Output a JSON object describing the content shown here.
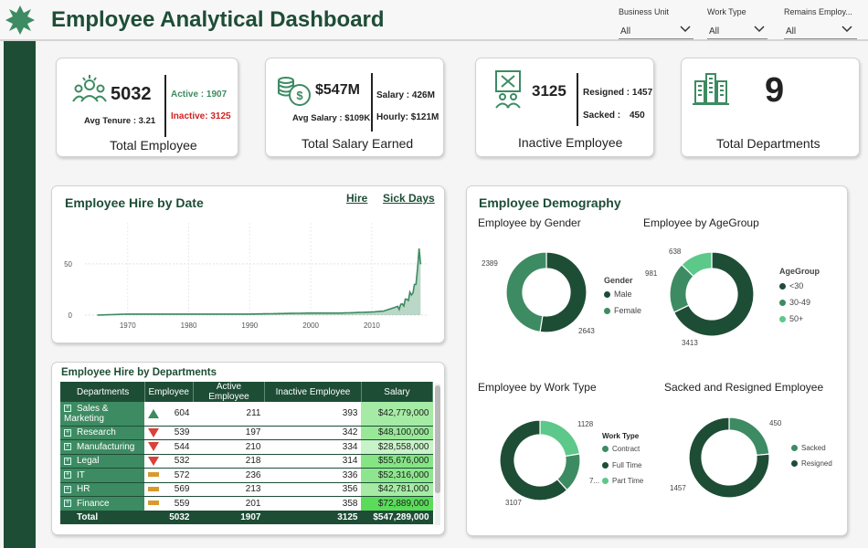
{
  "header": {
    "title": "Employee Analytical Dashboard",
    "slicers": [
      {
        "label": "Business Unit",
        "value": "All"
      },
      {
        "label": "Work Type",
        "value": "All"
      },
      {
        "label": "Remains Employ...",
        "value": "All"
      }
    ]
  },
  "kpis": {
    "total_employee": {
      "value": "5032",
      "active": "Active : 1907",
      "inactive": "Inactive: 3125",
      "tenure": "Avg Tenure : 3.21",
      "title": "Total Employee"
    },
    "salary": {
      "value": "$547M",
      "avg": "Avg Salary : $109K",
      "salary": "Salary : 426M",
      "hourly": "Hourly: $121M",
      "title": "Total Salary Earned"
    },
    "inactive": {
      "value": "3125",
      "resigned": "Resigned : 1457",
      "sacked_label": "Sacked :",
      "sacked_value": "450",
      "title": "Inactive Employee"
    },
    "departments": {
      "value": "9",
      "title": "Total Departments"
    }
  },
  "hire_chart": {
    "title": "Employee Hire by Date",
    "tabs": [
      "Hire",
      "Sick Days"
    ],
    "y_ticks": [
      "50",
      "0"
    ],
    "x_ticks": [
      "1970",
      "1980",
      "1990",
      "2000",
      "2010"
    ]
  },
  "dept_table": {
    "title": "Employee Hire by Departments",
    "columns": [
      "Departments",
      "Employee",
      "Active Employee",
      "Inactive Employee",
      "Salary"
    ],
    "rows": [
      {
        "name": "Sales & Marketing",
        "trend": "up",
        "employee": "604",
        "active": "211",
        "inactive": "393",
        "salary": "$42,779,000"
      },
      {
        "name": "Research",
        "trend": "down",
        "employee": "539",
        "active": "197",
        "inactive": "342",
        "salary": "$48,100,000"
      },
      {
        "name": "Manufacturing",
        "trend": "down",
        "employee": "544",
        "active": "210",
        "inactive": "334",
        "salary": "$28,558,000"
      },
      {
        "name": "Legal",
        "trend": "down",
        "employee": "532",
        "active": "218",
        "inactive": "314",
        "salary": "$55,676,000"
      },
      {
        "name": "IT",
        "trend": "flat",
        "employee": "572",
        "active": "236",
        "inactive": "336",
        "salary": "$52,316,000"
      },
      {
        "name": "HR",
        "trend": "flat",
        "employee": "569",
        "active": "213",
        "inactive": "356",
        "salary": "$42,781,000"
      },
      {
        "name": "Finance",
        "trend": "flat",
        "employee": "559",
        "active": "201",
        "inactive": "358",
        "salary": "$72,889,000"
      }
    ],
    "total": {
      "name": "Total",
      "employee": "5032",
      "active": "1907",
      "inactive": "3125",
      "salary": "$547,289,000"
    }
  },
  "demography": {
    "title": "Employee Demography",
    "gender": {
      "title": "Employee by Gender",
      "legend_title": "Gender",
      "labels": [
        "2389",
        "2643"
      ],
      "legend": [
        "Male",
        "Female"
      ]
    },
    "age": {
      "title": "Employee by AgeGroup",
      "legend_title": "AgeGroup",
      "labels": [
        "638",
        "981",
        "3413"
      ],
      "legend": [
        "<30",
        "30-49",
        "50+"
      ]
    },
    "worktype": {
      "title": "Employee by Work Type",
      "legend_title": "Work Type",
      "labels": [
        "1128",
        "7...",
        "3107"
      ],
      "legend": [
        "Contract",
        "Full Time",
        "Part Time"
      ]
    },
    "sacked": {
      "title": "Sacked and Resigned Employee",
      "labels": [
        "450",
        "1457"
      ],
      "legend": [
        "Sacked",
        "Resigned"
      ]
    }
  },
  "colors": {
    "dark": "#1e4d36",
    "mid": "#3d8b62",
    "light": "#5cc88a",
    "pale": "#b6ecb6"
  },
  "chart_data": [
    {
      "type": "pie",
      "title": "Employee by Gender",
      "labels": [
        "Male",
        "Female"
      ],
      "values": [
        2643,
        2389
      ]
    },
    {
      "type": "pie",
      "title": "Employee by AgeGroup",
      "labels": [
        "<30",
        "30-49",
        "50+"
      ],
      "values": [
        3413,
        981,
        638
      ]
    },
    {
      "type": "pie",
      "title": "Employee by Work Type",
      "labels": [
        "Contract",
        "Full Time",
        "Part Time"
      ],
      "values": [
        1128,
        3107,
        797
      ]
    },
    {
      "type": "pie",
      "title": "Sacked and Resigned Employee",
      "labels": [
        "Sacked",
        "Resigned"
      ],
      "values": [
        450,
        1457
      ]
    },
    {
      "type": "line",
      "title": "Employee Hire by Date",
      "x": [
        1965,
        1970,
        1980,
        1990,
        2000,
        2005,
        2010,
        2012,
        2013,
        2014,
        2015,
        2016,
        2017,
        2018
      ],
      "y": [
        0,
        1,
        1,
        1,
        2,
        2,
        3,
        4,
        6,
        8,
        12,
        20,
        30,
        78
      ],
      "ylim": [
        0,
        90
      ]
    }
  ]
}
